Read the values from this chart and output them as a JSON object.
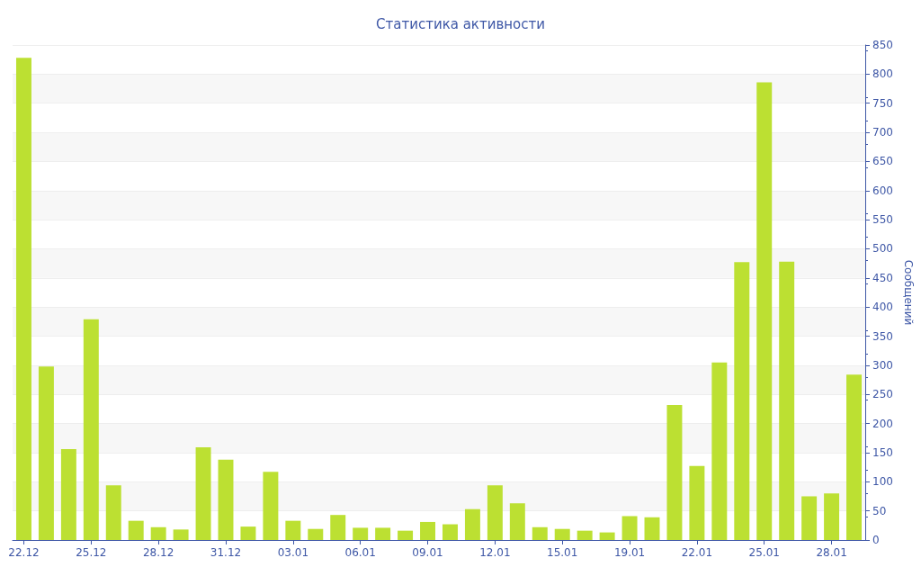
{
  "chart_data": {
    "type": "bar",
    "title": "Статистика активности",
    "ylabel": "Сообщений",
    "categories": [
      "22.12",
      null,
      null,
      "25.12",
      null,
      null,
      "28.12",
      null,
      null,
      "31.12",
      null,
      null,
      "03.01",
      null,
      null,
      "06.01",
      null,
      null,
      "09.01",
      null,
      null,
      "12.01",
      null,
      null,
      "15.01",
      null,
      null,
      "19.01",
      null,
      null,
      "22.01",
      null,
      null,
      "25.01",
      null,
      null,
      "28.01",
      null
    ],
    "values": [
      828,
      298,
      156,
      379,
      94,
      33,
      22,
      18,
      159,
      138,
      23,
      117,
      33,
      19,
      43,
      21,
      21,
      16,
      31,
      27,
      53,
      94,
      63,
      22,
      19,
      16,
      13,
      41,
      39,
      232,
      127,
      305,
      477,
      786,
      478,
      75,
      80,
      284
    ],
    "color": "#bce032",
    "ylim": [
      0,
      850
    ],
    "yticks": [
      0,
      50,
      100,
      150,
      200,
      250,
      300,
      350,
      400,
      450,
      500,
      550,
      600,
      650,
      700,
      750,
      800,
      850
    ],
    "grid": "y"
  }
}
